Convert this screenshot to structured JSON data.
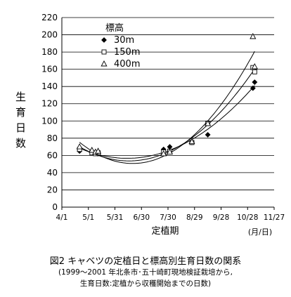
{
  "chart_data": {
    "type": "scatter",
    "title": "",
    "xlabel": "定植期",
    "x_unit": "(月/日)",
    "ylabel": "生育日数",
    "ylim": [
      0,
      220
    ],
    "y_ticks": [
      0,
      20,
      40,
      60,
      80,
      100,
      120,
      140,
      160,
      180,
      200,
      220
    ],
    "x_ticks": [
      "4/1",
      "5/1",
      "5/31",
      "6/30",
      "7/30",
      "8/29",
      "9/28",
      "10/28",
      "11/27"
    ],
    "grid": "horizontal",
    "legend_title": "標高",
    "legend_position": "top-left",
    "series": [
      {
        "name": "30m",
        "marker": "filled-diamond",
        "x": [
          "4/21",
          "5/5",
          "5/9",
          "5/12",
          "7/25",
          "8/1",
          "8/26",
          "9/13",
          "11/3",
          "11/5"
        ],
        "y": [
          65,
          64,
          63,
          62,
          67,
          70,
          75,
          84,
          138,
          145
        ]
      },
      {
        "name": "150m",
        "marker": "open-square",
        "x": [
          "4/21",
          "5/5",
          "5/9",
          "5/12",
          "7/25",
          "8/1",
          "8/26",
          "9/13",
          "11/3",
          "11/5"
        ],
        "y": [
          67,
          63,
          62,
          63,
          64,
          65,
          75,
          97,
          162,
          157
        ]
      },
      {
        "name": "400m",
        "marker": "open-triangle",
        "x": [
          "4/21",
          "5/5",
          "5/9",
          "5/12",
          "7/25",
          "8/1",
          "8/26",
          "9/13",
          "11/3",
          "11/5"
        ],
        "y": [
          70,
          66,
          64,
          65,
          62,
          64,
          76,
          97,
          198,
          163
        ]
      }
    ]
  },
  "caption": {
    "title": "図2 キャベツの定植日と標高別生育日数の関系",
    "line1": "(1999～2001 年北条市･五十崎町現地検証栽培から,",
    "line2": "生育日数:定植から収穫開始までの日数)"
  }
}
